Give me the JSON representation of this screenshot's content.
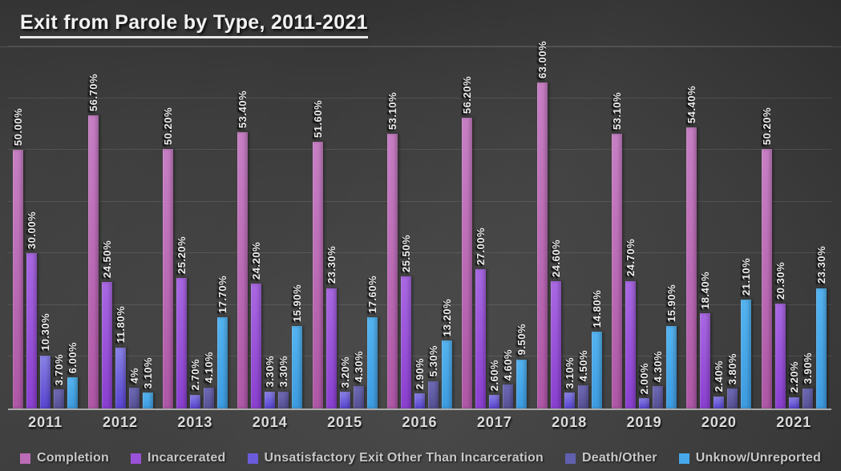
{
  "slide": {
    "title": "Exit from Parole by Type, 2011-2021"
  },
  "chart_data": {
    "type": "bar",
    "title": "Exit from Parole by Type, 2011-2021",
    "categories": [
      "2011",
      "2012",
      "2013",
      "2014",
      "2015",
      "2016",
      "2017",
      "2018",
      "2019",
      "2020",
      "2021"
    ],
    "series": [
      {
        "name": "Completion",
        "color": {
          "top": "#c77fc4",
          "bottom": "#ae57a6",
          "legend": "#bc6cb6"
        },
        "values": [
          50.0,
          56.7,
          50.2,
          53.4,
          51.6,
          53.1,
          56.2,
          63.0,
          53.1,
          54.4,
          50.2
        ],
        "labels": [
          "50.00%",
          "56.70%",
          "50.20%",
          "53.40%",
          "51.60%",
          "53.10%",
          "56.20%",
          "63.00%",
          "53.10%",
          "54.40%",
          "50.20%"
        ]
      },
      {
        "name": "Incarcerated",
        "color": {
          "top": "#a968e2",
          "bottom": "#8a3fd0",
          "legend": "#9b51d8"
        },
        "values": [
          30.0,
          24.5,
          25.2,
          24.2,
          23.3,
          25.5,
          27.0,
          24.6,
          24.7,
          18.4,
          20.3
        ],
        "labels": [
          "30.00%",
          "24.50%",
          "25.20%",
          "24.20%",
          "23.30%",
          "25.50%",
          "27.00%",
          "24.60%",
          "24.70%",
          "18.40%",
          "20.30%"
        ]
      },
      {
        "name": "Unsatisfactory Exit Other Than Incarceration",
        "color": {
          "top": "#8a82e6",
          "bottom": "#5844d0",
          "legend": "#6a5cdc"
        },
        "values": [
          10.3,
          11.8,
          2.7,
          3.3,
          3.2,
          2.9,
          2.6,
          3.1,
          2.0,
          2.4,
          2.2
        ],
        "labels": [
          "10.30%",
          "11.80%",
          "2.70%",
          "3.30%",
          "3.20%",
          "2.90%",
          "2.60%",
          "3.10%",
          "2.00%",
          "2.40%",
          "2.20%"
        ]
      },
      {
        "name": "Death/Other",
        "color": {
          "top": "#6e6ab6",
          "bottom": "#565093",
          "legend": "#6060ae"
        },
        "values": [
          3.7,
          4.0,
          4.1,
          3.3,
          4.3,
          5.3,
          4.6,
          4.5,
          4.3,
          3.8,
          3.9
        ],
        "labels": [
          "3.70%",
          "4%",
          "4.10%",
          "3.30%",
          "4.30%",
          "5.30%",
          "4.60%",
          "4.50%",
          "4.30%",
          "3.80%",
          "3.90%"
        ]
      },
      {
        "name": "Unknow/Unreported",
        "color": {
          "top": "#54b4f0",
          "bottom": "#3d9be0",
          "legend": "#47a9ec"
        },
        "values": [
          6.0,
          3.1,
          17.7,
          15.9,
          17.6,
          13.2,
          9.5,
          14.8,
          15.9,
          21.1,
          23.3
        ],
        "labels": [
          "6.00%",
          "3.10%",
          "17.70%",
          "15.90%",
          "17.60%",
          "13.20%",
          "9.50%",
          "14.80%",
          "15.90%",
          "21.10%",
          "23.30%"
        ]
      }
    ],
    "xlabel": "",
    "ylabel": "",
    "ylim": [
      0,
      70
    ],
    "grid": true,
    "grid_interval": 10,
    "legend_position": "bottom"
  }
}
